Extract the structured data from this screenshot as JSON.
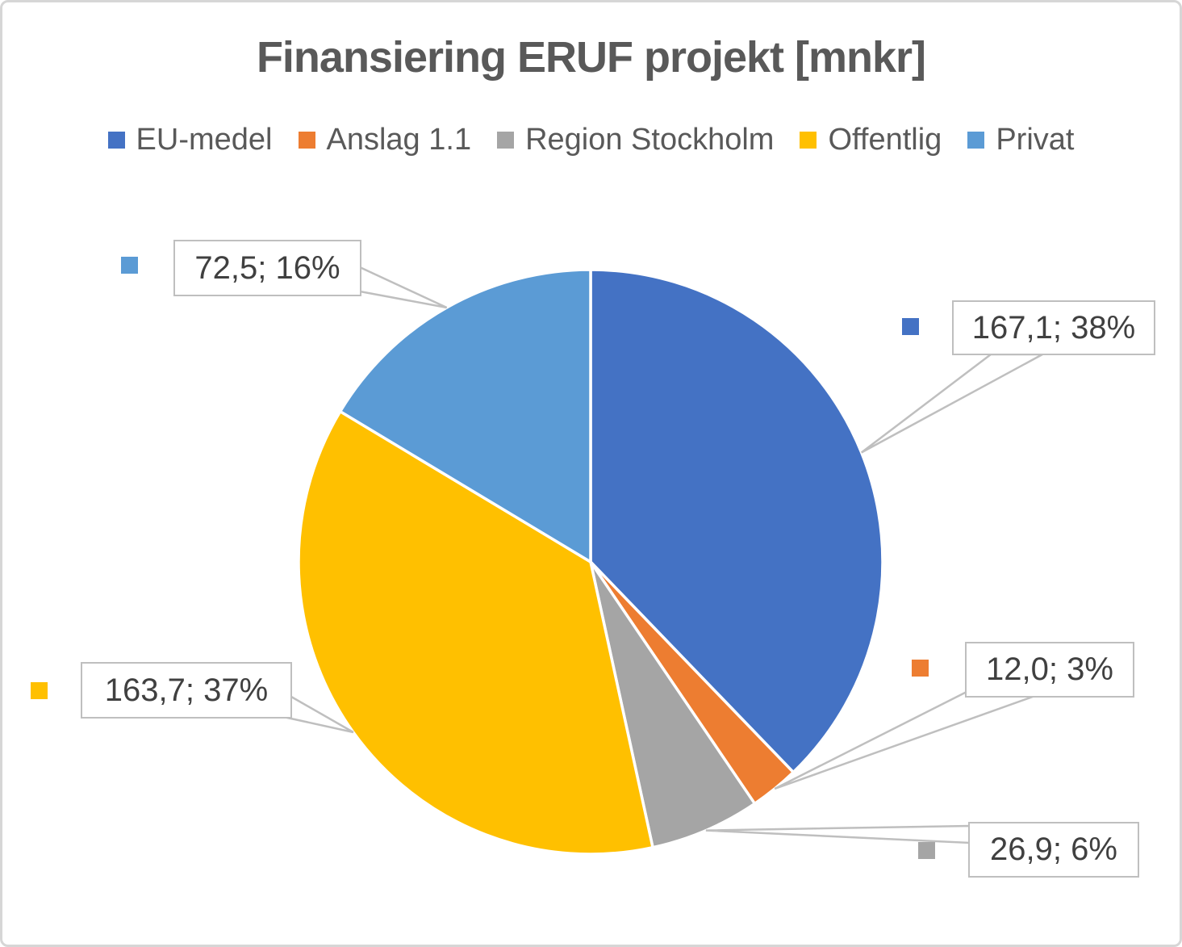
{
  "title": "Finansiering ERUF projekt [mnkr]",
  "legend": {
    "items": [
      {
        "label": "EU-medel",
        "color": "#4472C4"
      },
      {
        "label": "Anslag 1.1",
        "color": "#ED7D31"
      },
      {
        "label": "Region Stockholm",
        "color": "#A5A5A5"
      },
      {
        "label": "Offentlig",
        "color": "#FFC000"
      },
      {
        "label": "Privat",
        "color": "#5B9BD5"
      }
    ]
  },
  "chart_data": {
    "type": "pie",
    "title": "Finansiering ERUF projekt [mnkr]",
    "unit": "mnkr",
    "categories": [
      "EU-medel",
      "Anslag 1.1",
      "Region Stockholm",
      "Offentlig",
      "Privat"
    ],
    "values": [
      167.1,
      12.0,
      26.9,
      163.7,
      72.5
    ],
    "percents": [
      38,
      3,
      6,
      37,
      16
    ],
    "colors": [
      "#4472C4",
      "#ED7D31",
      "#A5A5A5",
      "#FFC000",
      "#5B9BD5"
    ],
    "data_labels": [
      "167,1; 38%",
      "12,0; 3%",
      "26,9; 6%",
      "163,7; 37%",
      "72,5; 16%"
    ],
    "start_angle_deg": 0,
    "direction": "clockwise",
    "legend_position": "top",
    "slice_border_color": "#FFFFFF",
    "leader_line_color": "#BFBFBF"
  }
}
